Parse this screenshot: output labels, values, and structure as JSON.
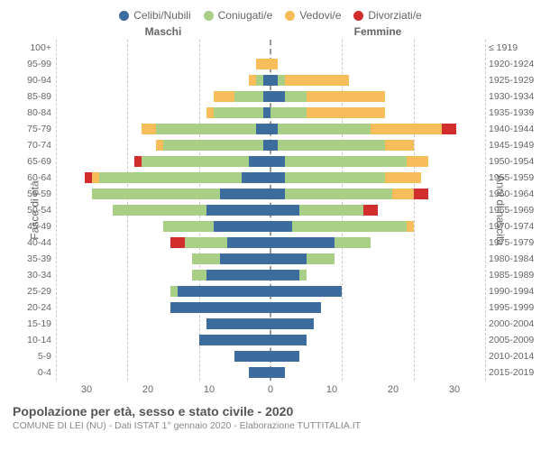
{
  "legend": [
    {
      "label": "Celibi/Nubili",
      "color": "#3b6c9d"
    },
    {
      "label": "Coniugati/e",
      "color": "#a9cf87"
    },
    {
      "label": "Vedovi/e",
      "color": "#f7bd5a"
    },
    {
      "label": "Divorziati/e",
      "color": "#d22d2d"
    }
  ],
  "headers": {
    "left": "Maschi",
    "right": "Femmine"
  },
  "axis_labels": {
    "left": "Fasce di età",
    "right": "Anni di nascita"
  },
  "title": "Popolazione per età, sesso e stato civile - 2020",
  "subtitle": "COMUNE DI LEI (NU) - Dati ISTAT 1° gennaio 2020 - Elaborazione TUTTITALIA.IT",
  "xmax": 30,
  "xticks": [
    30,
    20,
    10,
    0,
    10,
    20,
    30
  ],
  "grid_positions_pct": [
    0,
    16.67,
    33.33,
    50,
    66.67,
    83.33,
    100
  ],
  "background_color": "#ffffff",
  "grid_color": "#cccccc",
  "center_line_color": "#999999",
  "text_color": "#666666",
  "rows": [
    {
      "age": "100+",
      "birth": "≤ 1919",
      "m": {
        "c": 0,
        "co": 0,
        "v": 0,
        "d": 0
      },
      "f": {
        "c": 0,
        "co": 0,
        "v": 0,
        "d": 0
      }
    },
    {
      "age": "95-99",
      "birth": "1920-1924",
      "m": {
        "c": 0,
        "co": 0,
        "v": 2,
        "d": 0
      },
      "f": {
        "c": 0,
        "co": 0,
        "v": 1,
        "d": 0
      }
    },
    {
      "age": "90-94",
      "birth": "1925-1929",
      "m": {
        "c": 1,
        "co": 1,
        "v": 1,
        "d": 0
      },
      "f": {
        "c": 1,
        "co": 1,
        "v": 9,
        "d": 0
      }
    },
    {
      "age": "85-89",
      "birth": "1930-1934",
      "m": {
        "c": 1,
        "co": 4,
        "v": 3,
        "d": 0
      },
      "f": {
        "c": 2,
        "co": 3,
        "v": 11,
        "d": 0
      }
    },
    {
      "age": "80-84",
      "birth": "1935-1939",
      "m": {
        "c": 1,
        "co": 7,
        "v": 1,
        "d": 0
      },
      "f": {
        "c": 0,
        "co": 5,
        "v": 11,
        "d": 0
      }
    },
    {
      "age": "75-79",
      "birth": "1940-1944",
      "m": {
        "c": 2,
        "co": 14,
        "v": 2,
        "d": 0
      },
      "f": {
        "c": 1,
        "co": 13,
        "v": 10,
        "d": 2
      }
    },
    {
      "age": "70-74",
      "birth": "1945-1949",
      "m": {
        "c": 1,
        "co": 14,
        "v": 1,
        "d": 0
      },
      "f": {
        "c": 1,
        "co": 15,
        "v": 4,
        "d": 0
      }
    },
    {
      "age": "65-69",
      "birth": "1950-1954",
      "m": {
        "c": 3,
        "co": 15,
        "v": 0,
        "d": 1
      },
      "f": {
        "c": 2,
        "co": 17,
        "v": 3,
        "d": 0
      }
    },
    {
      "age": "60-64",
      "birth": "1955-1959",
      "m": {
        "c": 4,
        "co": 20,
        "v": 1,
        "d": 1
      },
      "f": {
        "c": 2,
        "co": 14,
        "v": 5,
        "d": 0
      }
    },
    {
      "age": "55-59",
      "birth": "1960-1964",
      "m": {
        "c": 7,
        "co": 18,
        "v": 0,
        "d": 0
      },
      "f": {
        "c": 2,
        "co": 15,
        "v": 3,
        "d": 2
      }
    },
    {
      "age": "50-54",
      "birth": "1965-1969",
      "m": {
        "c": 9,
        "co": 13,
        "v": 0,
        "d": 0
      },
      "f": {
        "c": 4,
        "co": 9,
        "v": 0,
        "d": 2
      }
    },
    {
      "age": "45-49",
      "birth": "1970-1974",
      "m": {
        "c": 8,
        "co": 7,
        "v": 0,
        "d": 0
      },
      "f": {
        "c": 3,
        "co": 16,
        "v": 1,
        "d": 0
      }
    },
    {
      "age": "40-44",
      "birth": "1975-1979",
      "m": {
        "c": 6,
        "co": 6,
        "v": 0,
        "d": 2
      },
      "f": {
        "c": 9,
        "co": 5,
        "v": 0,
        "d": 0
      }
    },
    {
      "age": "35-39",
      "birth": "1980-1984",
      "m": {
        "c": 7,
        "co": 4,
        "v": 0,
        "d": 0
      },
      "f": {
        "c": 5,
        "co": 4,
        "v": 0,
        "d": 0
      }
    },
    {
      "age": "30-34",
      "birth": "1985-1989",
      "m": {
        "c": 9,
        "co": 2,
        "v": 0,
        "d": 0
      },
      "f": {
        "c": 4,
        "co": 1,
        "v": 0,
        "d": 0
      }
    },
    {
      "age": "25-29",
      "birth": "1990-1994",
      "m": {
        "c": 13,
        "co": 1,
        "v": 0,
        "d": 0
      },
      "f": {
        "c": 10,
        "co": 0,
        "v": 0,
        "d": 0
      }
    },
    {
      "age": "20-24",
      "birth": "1995-1999",
      "m": {
        "c": 14,
        "co": 0,
        "v": 0,
        "d": 0
      },
      "f": {
        "c": 7,
        "co": 0,
        "v": 0,
        "d": 0
      }
    },
    {
      "age": "15-19",
      "birth": "2000-2004",
      "m": {
        "c": 9,
        "co": 0,
        "v": 0,
        "d": 0
      },
      "f": {
        "c": 6,
        "co": 0,
        "v": 0,
        "d": 0
      }
    },
    {
      "age": "10-14",
      "birth": "2005-2009",
      "m": {
        "c": 10,
        "co": 0,
        "v": 0,
        "d": 0
      },
      "f": {
        "c": 5,
        "co": 0,
        "v": 0,
        "d": 0
      }
    },
    {
      "age": "5-9",
      "birth": "2010-2014",
      "m": {
        "c": 5,
        "co": 0,
        "v": 0,
        "d": 0
      },
      "f": {
        "c": 4,
        "co": 0,
        "v": 0,
        "d": 0
      }
    },
    {
      "age": "0-4",
      "birth": "2015-2019",
      "m": {
        "c": 3,
        "co": 0,
        "v": 0,
        "d": 0
      },
      "f": {
        "c": 2,
        "co": 0,
        "v": 0,
        "d": 0
      }
    }
  ]
}
